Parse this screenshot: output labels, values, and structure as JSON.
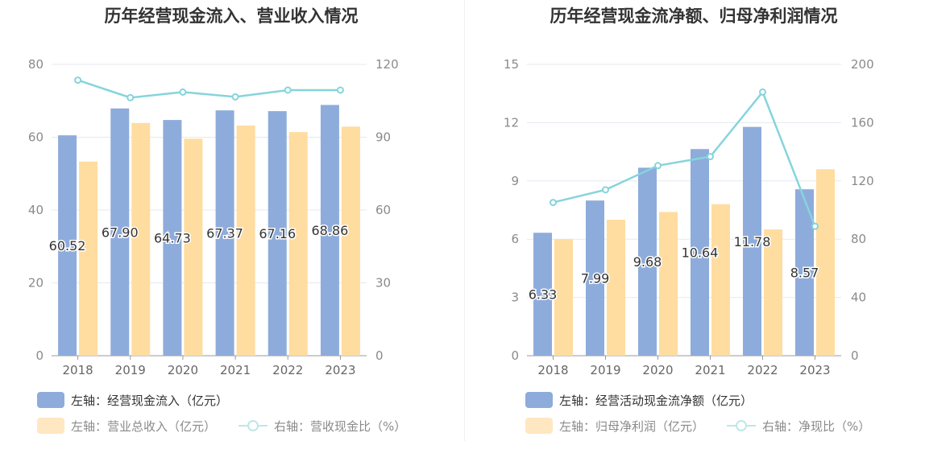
{
  "charts": [
    {
      "title": "历年经营现金流入、营业收入情况",
      "legend": [
        {
          "label": "左轴：经营现金流入（亿元）",
          "kind": "bar",
          "color": "#8eacdb"
        },
        {
          "label": "左轴：营业总收入（亿元）",
          "kind": "bar",
          "color": "#ffdca0"
        },
        {
          "label": "右轴：营收现金比（%）",
          "kind": "line",
          "color": "#86d4dc"
        }
      ]
    },
    {
      "title": "历年经营现金流净额、归母净利润情况",
      "legend": [
        {
          "label": "左轴：经营活动现金流净额（亿元）",
          "kind": "bar",
          "color": "#8eacdb"
        },
        {
          "label": "左轴：归母净利润（亿元）",
          "kind": "bar",
          "color": "#ffdca0"
        },
        {
          "label": "右轴：净现比（%）",
          "kind": "line",
          "color": "#86d4dc"
        }
      ]
    }
  ],
  "chart_data": [
    {
      "type": "bar",
      "title": "历年经营现金流入、营业收入情况",
      "categories": [
        "2018",
        "2019",
        "2020",
        "2021",
        "2022",
        "2023"
      ],
      "ylim_left": [
        0,
        80
      ],
      "yticks_left": [
        "0",
        "20",
        "40",
        "60",
        "80"
      ],
      "ylim_right": [
        0,
        120
      ],
      "yticks_right": [
        "0",
        "30",
        "60",
        "90",
        "120"
      ],
      "grid": true,
      "series": [
        {
          "name": "左轴：经营现金流入（亿元）",
          "axis": "left",
          "type": "bar",
          "color": "#8eacdb",
          "values": [
            60.52,
            67.9,
            64.73,
            67.37,
            67.16,
            68.86
          ],
          "labels": [
            "60.52",
            "67.90",
            "64.73",
            "67.37",
            "67.16",
            "68.86"
          ]
        },
        {
          "name": "左轴：营业总收入（亿元）",
          "axis": "left",
          "type": "bar",
          "color": "#ffdca0",
          "values": [
            53.3,
            63.9,
            59.6,
            63.2,
            61.4,
            62.9
          ]
        },
        {
          "name": "右轴：营收现金比（%）",
          "axis": "right",
          "type": "line",
          "color": "#86d4dc",
          "values": [
            113.5,
            106.3,
            108.6,
            106.6,
            109.4,
            109.4
          ]
        }
      ]
    },
    {
      "type": "bar",
      "title": "历年经营现金流净额、归母净利润情况",
      "categories": [
        "2018",
        "2019",
        "2020",
        "2021",
        "2022",
        "2023"
      ],
      "ylim_left": [
        0,
        15
      ],
      "yticks_left": [
        "0",
        "3",
        "6",
        "9",
        "12",
        "15"
      ],
      "ylim_right": [
        0,
        200
      ],
      "yticks_right": [
        "0",
        "40",
        "80",
        "120",
        "160",
        "200"
      ],
      "grid": true,
      "series": [
        {
          "name": "左轴：经营活动现金流净额（亿元）",
          "axis": "left",
          "type": "bar",
          "color": "#8eacdb",
          "values": [
            6.33,
            7.99,
            9.68,
            10.64,
            11.78,
            8.57
          ],
          "labels": [
            "6.33",
            "7.99",
            "9.68",
            "10.64",
            "11.78",
            "8.57"
          ]
        },
        {
          "name": "左轴：归母净利润（亿元）",
          "axis": "left",
          "type": "bar",
          "color": "#ffdca0",
          "values": [
            6.0,
            7.0,
            7.4,
            7.8,
            6.5,
            9.6
          ]
        },
        {
          "name": "右轴：净现比（%）",
          "axis": "right",
          "type": "line",
          "color": "#86d4dc",
          "values": [
            105.2,
            113.9,
            130.5,
            136.7,
            181.0,
            88.8
          ]
        }
      ]
    }
  ]
}
